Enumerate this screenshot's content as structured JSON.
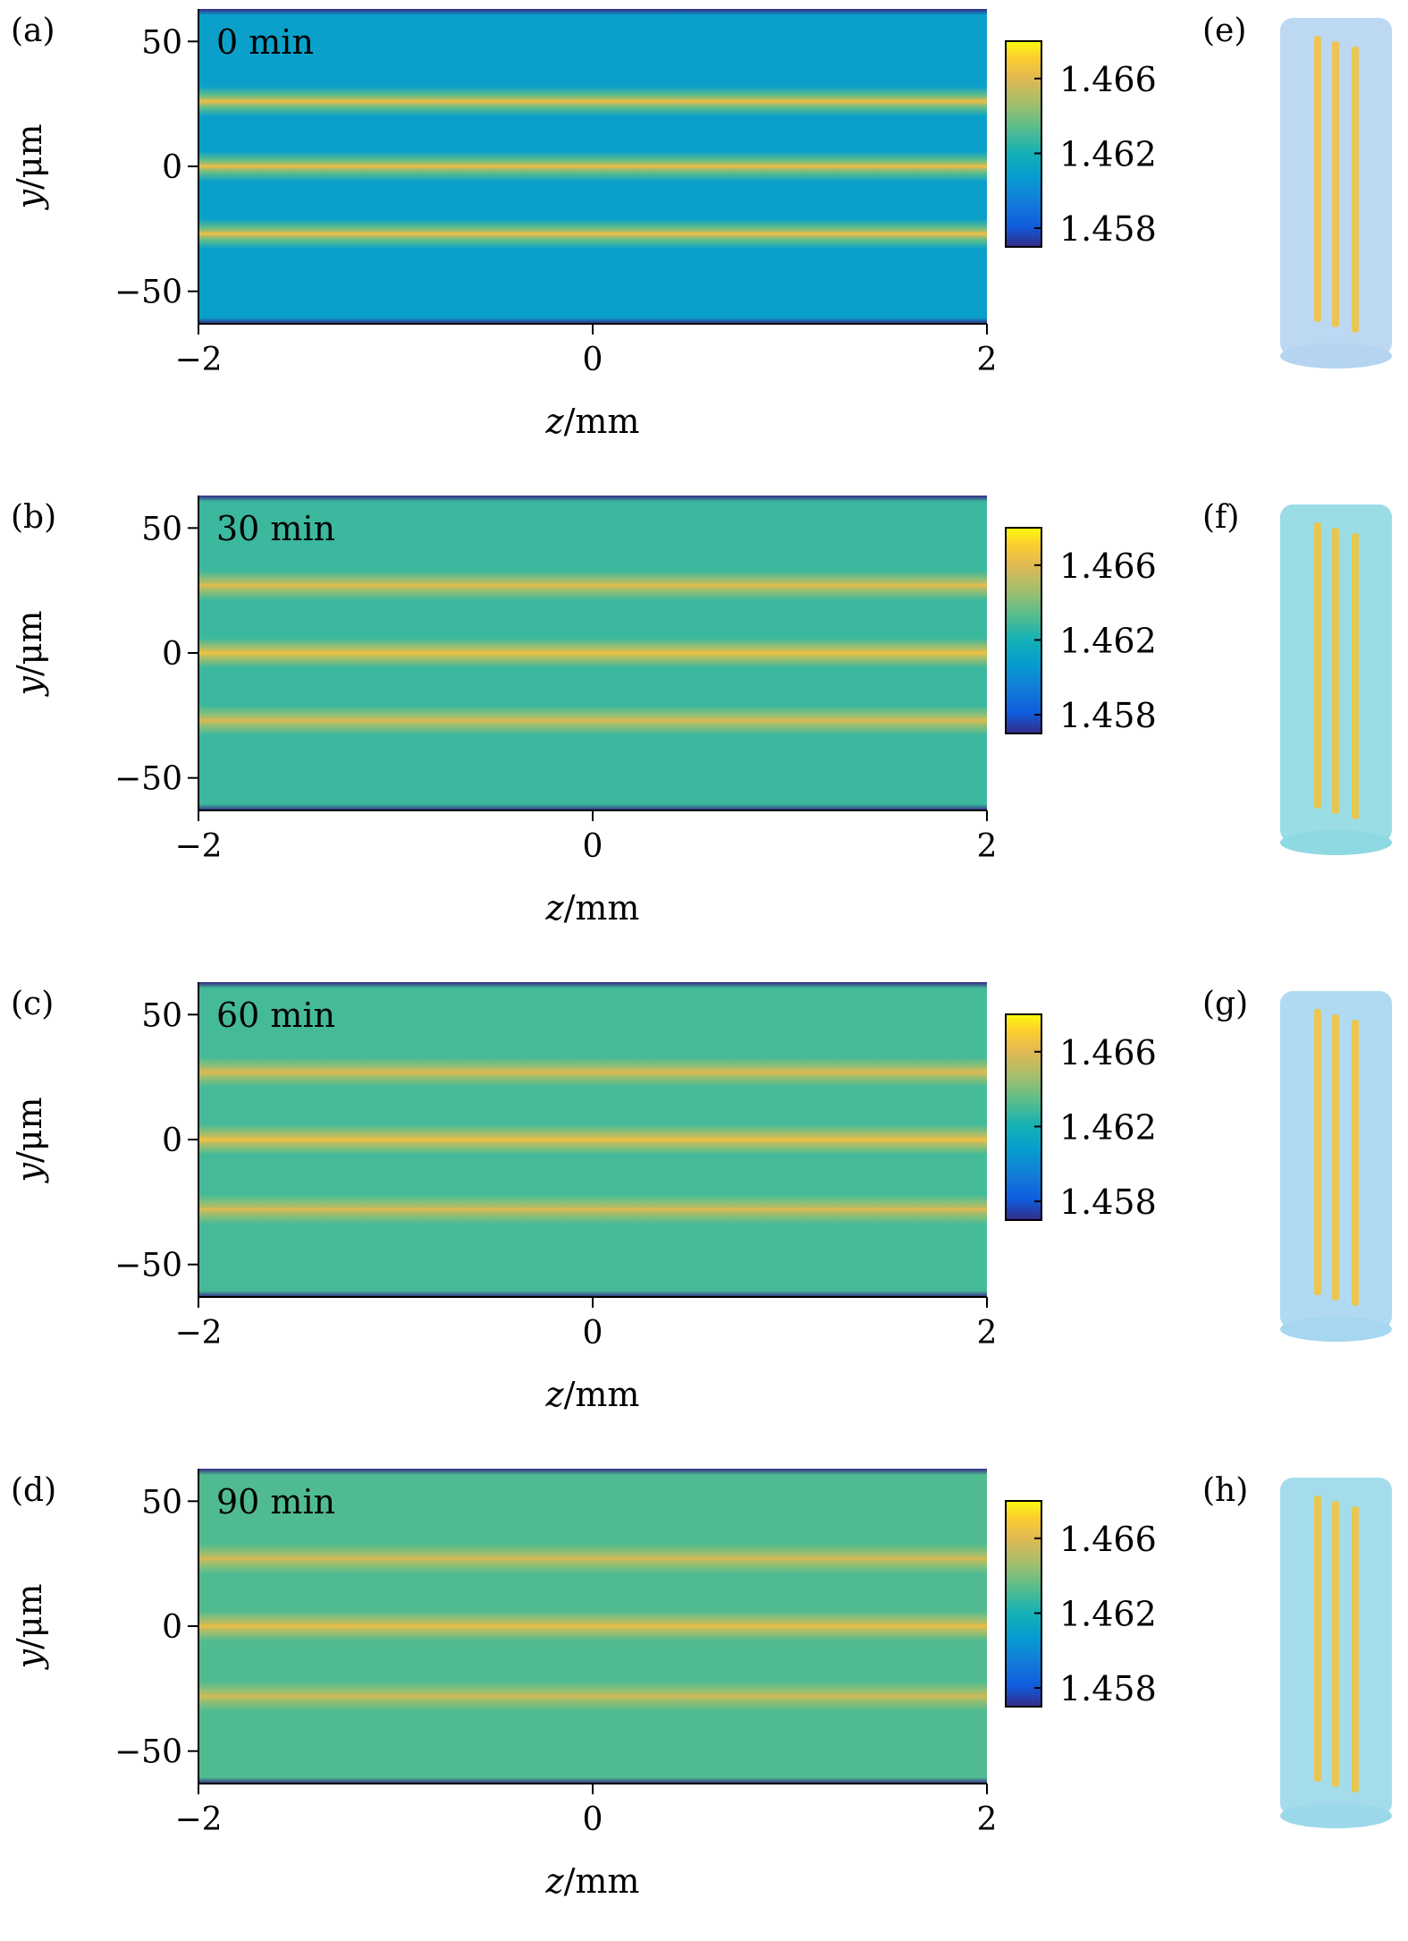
{
  "chart_data": [
    {
      "type": "heatmap",
      "panel_label": "(a)",
      "annotation": "0 min",
      "xlabel": "z/mm",
      "ylabel": "y/μm",
      "xlim": [
        -2,
        2
      ],
      "ylim": [
        -63,
        63
      ],
      "xticks": [
        -2,
        0,
        2
      ],
      "yticks": [
        50,
        0,
        -50
      ],
      "xticklabels": [
        "−2",
        "0",
        "2"
      ],
      "yticklabels": [
        "50",
        "0",
        "−50"
      ],
      "background_index": 1.461,
      "edge_index": 1.457,
      "waveguides": [
        {
          "y": 26,
          "index": 1.466
        },
        {
          "y": 0,
          "index": 1.466
        },
        {
          "y": -27,
          "index": 1.466
        }
      ],
      "colorbar": {
        "range": [
          1.457,
          1.468
        ],
        "ticks": [
          1.466,
          1.462,
          1.458
        ],
        "ticklabels": [
          "1.466",
          "1.462",
          "1.458"
        ]
      },
      "inset_label": "(e)",
      "inset_color": "#b5d4f2"
    },
    {
      "type": "heatmap",
      "panel_label": "(b)",
      "annotation": "30 min",
      "xlabel": "z/mm",
      "ylabel": "y/μm",
      "xlim": [
        -2,
        2
      ],
      "ylim": [
        -63,
        63
      ],
      "xticks": [
        -2,
        0,
        2
      ],
      "yticks": [
        50,
        0,
        -50
      ],
      "xticklabels": [
        "−2",
        "0",
        "2"
      ],
      "yticklabels": [
        "50",
        "0",
        "−50"
      ],
      "background_index": 1.4628,
      "edge_index": 1.457,
      "waveguides": [
        {
          "y": 27,
          "index": 1.4658
        },
        {
          "y": 0,
          "index": 1.4662
        },
        {
          "y": -27,
          "index": 1.4656
        }
      ],
      "colorbar": {
        "range": [
          1.457,
          1.468
        ],
        "ticks": [
          1.466,
          1.462,
          1.458
        ],
        "ticklabels": [
          "1.466",
          "1.462",
          "1.458"
        ]
      },
      "inset_label": "(f)",
      "inset_color": "#8fd9e2"
    },
    {
      "type": "heatmap",
      "panel_label": "(c)",
      "annotation": "60 min",
      "xlabel": "z/mm",
      "ylabel": "y/μm",
      "xlim": [
        -2,
        2
      ],
      "ylim": [
        -63,
        63
      ],
      "xticks": [
        -2,
        0,
        2
      ],
      "yticks": [
        50,
        0,
        -50
      ],
      "xticklabels": [
        "−2",
        "0",
        "2"
      ],
      "yticklabels": [
        "50",
        "0",
        "−50"
      ],
      "background_index": 1.463,
      "edge_index": 1.457,
      "waveguides": [
        {
          "y": 27,
          "index": 1.4657
        },
        {
          "y": 0,
          "index": 1.4662
        },
        {
          "y": -28,
          "index": 1.4656
        }
      ],
      "colorbar": {
        "range": [
          1.457,
          1.468
        ],
        "ticks": [
          1.466,
          1.462,
          1.458
        ],
        "ticklabels": [
          "1.466",
          "1.462",
          "1.458"
        ]
      },
      "inset_label": "(g)",
      "inset_color": "#a6d6f0"
    },
    {
      "type": "heatmap",
      "panel_label": "(d)",
      "annotation": "90 min",
      "xlabel": "z/mm",
      "ylabel": "y/μm",
      "xlim": [
        -2,
        2
      ],
      "ylim": [
        -63,
        63
      ],
      "xticks": [
        -2,
        0,
        2
      ],
      "yticks": [
        50,
        0,
        -50
      ],
      "xticklabels": [
        "−2",
        "0",
        "2"
      ],
      "yticklabels": [
        "50",
        "0",
        "−50"
      ],
      "background_index": 1.4632,
      "edge_index": 1.457,
      "waveguides": [
        {
          "y": 27,
          "index": 1.4655
        },
        {
          "y": 0,
          "index": 1.466
        },
        {
          "y": -28,
          "index": 1.4654
        }
      ],
      "colorbar": {
        "range": [
          1.457,
          1.468
        ],
        "ticks": [
          1.466,
          1.462,
          1.458
        ],
        "ticklabels": [
          "1.466",
          "1.462",
          "1.458"
        ]
      },
      "inset_label": "(h)",
      "inset_color": "#9ad8ea"
    }
  ]
}
